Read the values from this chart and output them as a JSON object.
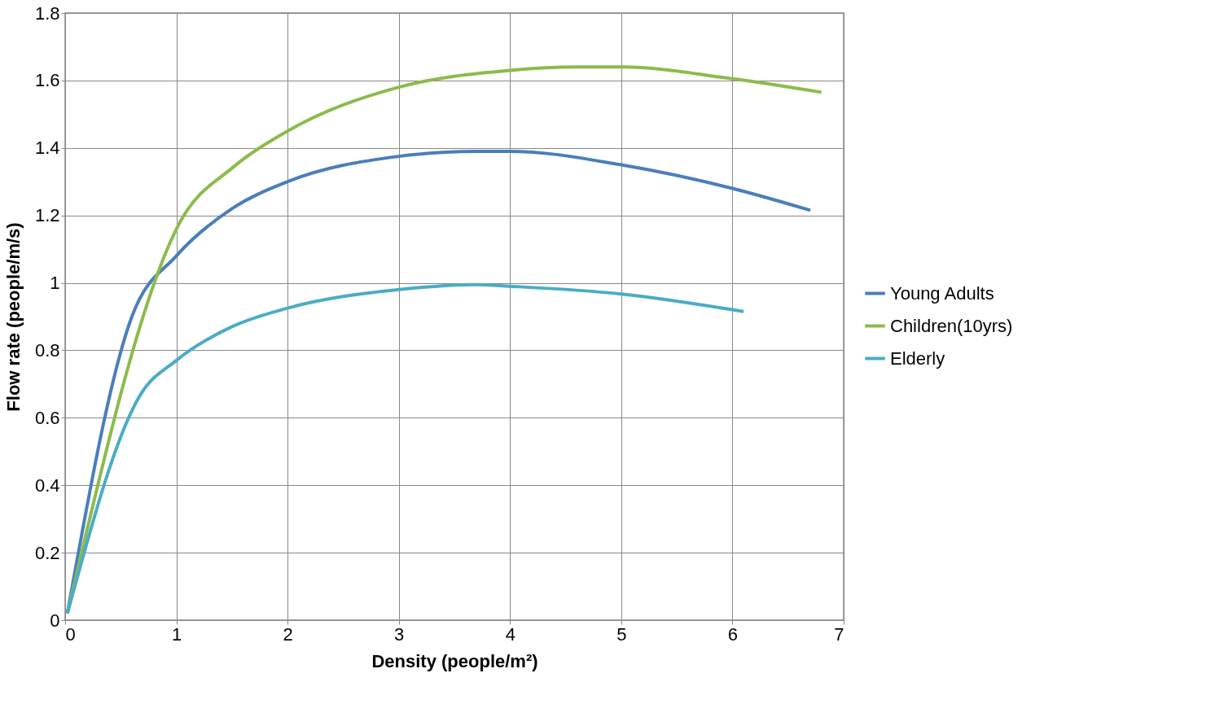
{
  "chart_data": {
    "type": "line",
    "xlabel": "Density (people/m²)",
    "ylabel": "Flow rate (people/m/s)",
    "xlim": [
      0,
      7
    ],
    "xticks": [
      0,
      1,
      2,
      3,
      4,
      5,
      6,
      7
    ],
    "ylim": [
      0,
      1.8
    ],
    "yticks": [
      0,
      0.2,
      0.4,
      0.6,
      0.8,
      1,
      1.2,
      1.4,
      1.6,
      1.8
    ],
    "grid": true,
    "legend": "right",
    "marker": "none",
    "line_style": "solid",
    "series": [
      {
        "name": "Young Adults",
        "color": "#4a7ebb",
        "x": [
          0.02,
          0.6,
          1,
          1.5,
          2,
          3,
          3.7,
          4,
          5,
          6,
          6.7
        ],
        "values": [
          0.02,
          0.9,
          1.08,
          1.22,
          1.3,
          1.375,
          1.39,
          1.39,
          1.35,
          1.28,
          1.215
        ]
      },
      {
        "name": "Children(10yrs)",
        "color": "#8cbb4c",
        "x": [
          0.02,
          1.05,
          1.5,
          2,
          3,
          4,
          4.6,
          5,
          6,
          6.8
        ],
        "values": [
          0.02,
          1.19,
          1.34,
          1.45,
          1.58,
          1.63,
          1.64,
          1.64,
          1.605,
          1.565
        ]
      },
      {
        "name": "Elderly",
        "color": "#4bacc6",
        "x": [
          0.02,
          0.68,
          1,
          1.5,
          2,
          3,
          3.7,
          4,
          5,
          6.1
        ],
        "values": [
          0.02,
          0.67,
          0.77,
          0.87,
          0.925,
          0.98,
          0.995,
          0.99,
          0.967,
          0.915
        ]
      }
    ]
  }
}
